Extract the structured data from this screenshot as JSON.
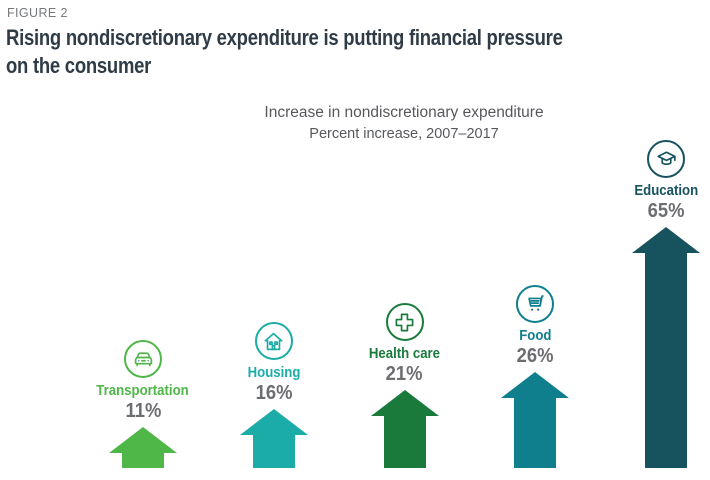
{
  "figure_label": "FIGURE 2",
  "title_line1": "Rising nondiscretionary expenditure is putting financial pressure",
  "title_line2": "on the consumer",
  "chart_data": {
    "type": "bar",
    "bar_style": "upward-arrow",
    "title": "Increase in nondiscretionary expenditure",
    "subtitle": "Percent increase, 2007–2017",
    "categories": [
      "Transportation",
      "Housing",
      "Health care",
      "Food",
      "Education"
    ],
    "values": [
      11,
      16,
      21,
      26,
      65
    ],
    "value_labels": [
      "11%",
      "16%",
      "21%",
      "26%",
      "65%"
    ],
    "icons": [
      "car-icon",
      "house-icon",
      "medical-cross-icon",
      "shopping-cart-icon",
      "graduation-cap-icon"
    ],
    "colors": [
      "#4eb748",
      "#1caca7",
      "#1a7a3c",
      "#0f7f8d",
      "#17525f"
    ],
    "value_label_color": "#6d6e71",
    "title_color": "#2f3b46",
    "figure_label_color": "#75787b",
    "subtitle_color": "#56585c",
    "ylim": [
      0,
      65
    ],
    "grid": false,
    "legend": false,
    "xlabel": "",
    "ylabel": ""
  }
}
